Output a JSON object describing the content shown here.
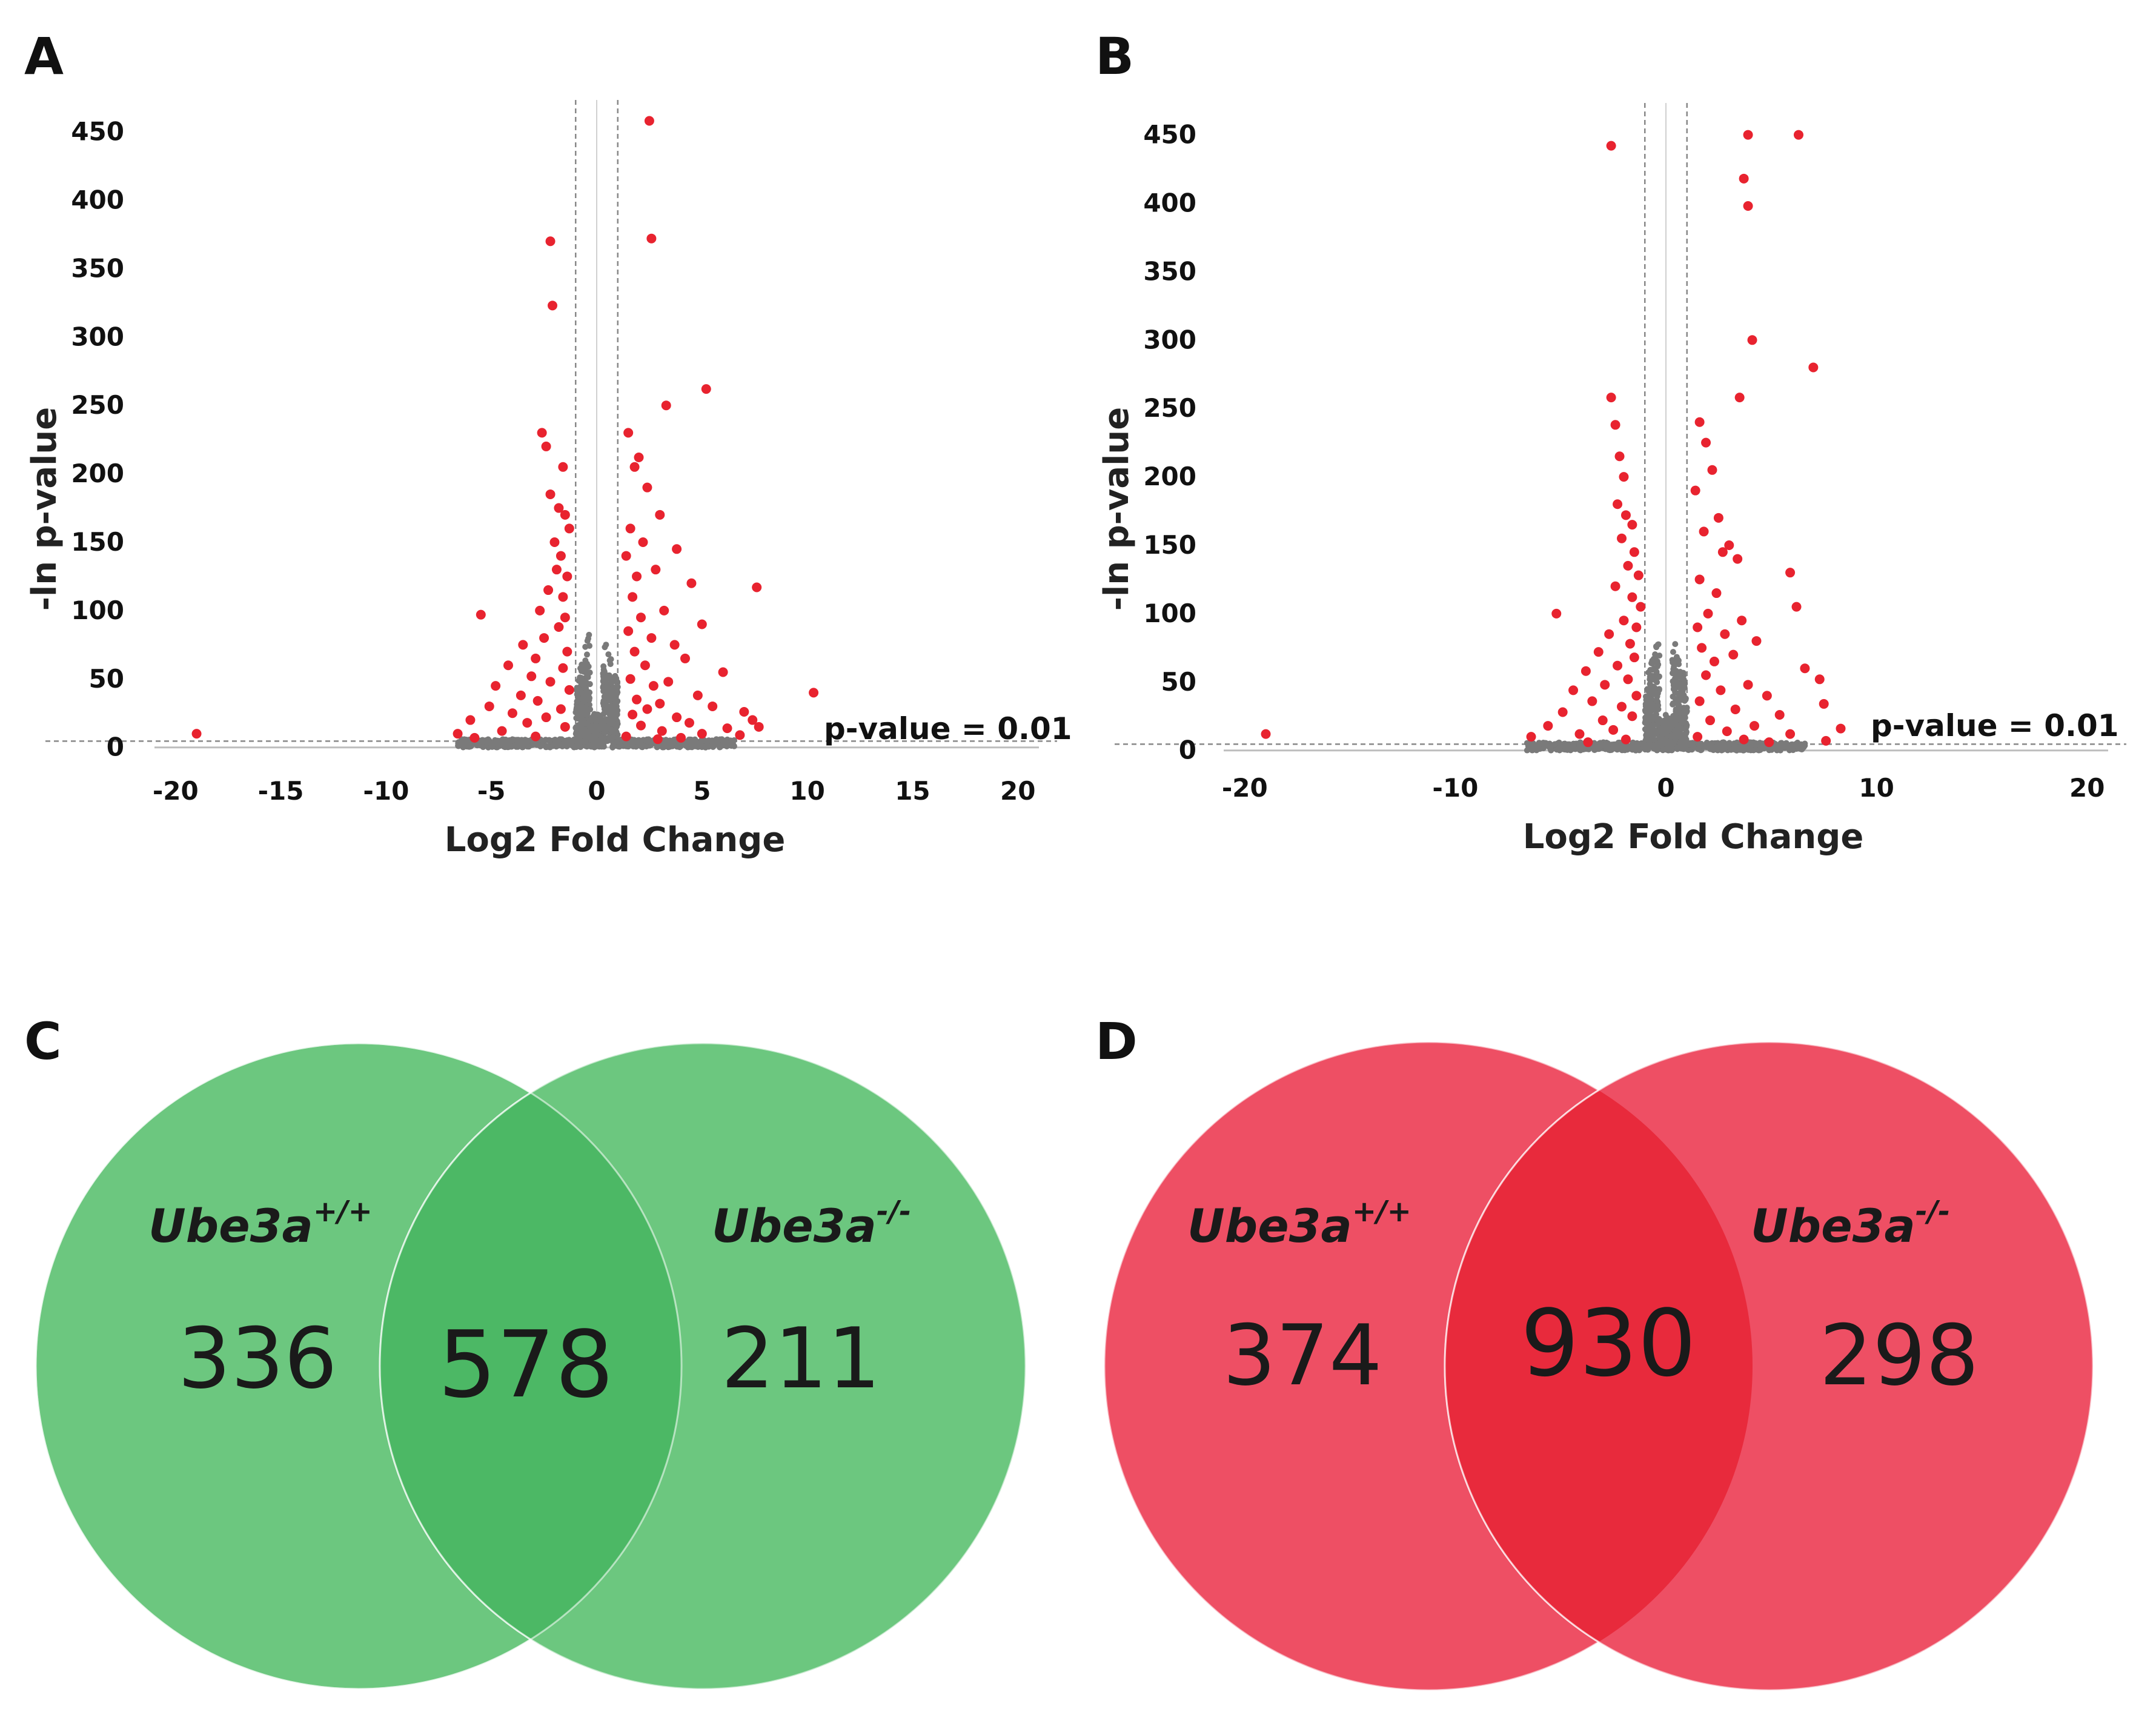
{
  "colors": {
    "significant": "#e8232f",
    "nonsignificant": "#7a7a7a",
    "venn_green": "#6cc77f",
    "venn_green_overlap": "#4cb865",
    "venn_red": "#ee4f64",
    "venn_red_overlap": "#e82a3c"
  },
  "chart_data": [
    {
      "panel": "A",
      "type": "scatter",
      "title": "",
      "xlabel": "Log2 Fold Change",
      "ylabel": "-ln p-value",
      "xlim": [
        -21,
        21
      ],
      "ylim": [
        -5,
        460
      ],
      "xticks": [
        "-20",
        "-15",
        "-10",
        "-5",
        "0",
        "5",
        "10",
        "15",
        "20"
      ],
      "xtick_values": [
        -20,
        -15,
        -10,
        -5,
        0,
        5,
        10,
        15,
        20
      ],
      "yticks": [
        "0",
        "50",
        "100",
        "150",
        "200",
        "250",
        "300",
        "350",
        "400",
        "450"
      ],
      "ytick_values": [
        0,
        50,
        100,
        150,
        200,
        250,
        300,
        350,
        400,
        450
      ],
      "grid": false,
      "fold_change_thresholds": [
        -1,
        1
      ],
      "threshold_annotation": "p-value = 0.01",
      "threshold_y": 4.6,
      "series": [
        {
          "name": "significant",
          "points": [
            [
              -19,
              10
            ],
            [
              -2.2,
              370
            ],
            [
              -2.1,
              323
            ],
            [
              -2.6,
              230
            ],
            [
              -2.4,
              220
            ],
            [
              -1.6,
              205
            ],
            [
              -2.2,
              185
            ],
            [
              -1.8,
              175
            ],
            [
              -1.5,
              170
            ],
            [
              -1.3,
              160
            ],
            [
              -2.0,
              150
            ],
            [
              -1.7,
              140
            ],
            [
              -1.9,
              130
            ],
            [
              -1.4,
              125
            ],
            [
              -2.3,
              115
            ],
            [
              -1.6,
              110
            ],
            [
              -2.7,
              100
            ],
            [
              -5.5,
              97
            ],
            [
              -1.5,
              95
            ],
            [
              -1.8,
              88
            ],
            [
              -2.5,
              80
            ],
            [
              -3.5,
              75
            ],
            [
              -1.4,
              70
            ],
            [
              -2.9,
              65
            ],
            [
              -4.2,
              60
            ],
            [
              -1.6,
              58
            ],
            [
              -3.1,
              52
            ],
            [
              -2.2,
              48
            ],
            [
              -4.8,
              45
            ],
            [
              -1.3,
              42
            ],
            [
              -3.6,
              38
            ],
            [
              -2.8,
              34
            ],
            [
              -5.1,
              30
            ],
            [
              -1.7,
              28
            ],
            [
              -4.0,
              25
            ],
            [
              -2.4,
              22
            ],
            [
              -6.0,
              20
            ],
            [
              -3.3,
              18
            ],
            [
              -1.5,
              15
            ],
            [
              -4.5,
              12
            ],
            [
              -6.6,
              10
            ],
            [
              -2.9,
              8
            ],
            [
              -5.8,
              7
            ],
            [
              2.5,
              458
            ],
            [
              2.6,
              372
            ],
            [
              5.2,
              262
            ],
            [
              3.3,
              250
            ],
            [
              1.5,
              230
            ],
            [
              2.0,
              212
            ],
            [
              1.8,
              205
            ],
            [
              2.4,
              190
            ],
            [
              3.0,
              170
            ],
            [
              1.6,
              160
            ],
            [
              2.2,
              150
            ],
            [
              3.8,
              145
            ],
            [
              1.4,
              140
            ],
            [
              2.8,
              130
            ],
            [
              1.9,
              125
            ],
            [
              4.5,
              120
            ],
            [
              7.6,
              117
            ],
            [
              1.7,
              110
            ],
            [
              3.2,
              100
            ],
            [
              2.1,
              95
            ],
            [
              5.0,
              90
            ],
            [
              1.5,
              85
            ],
            [
              2.6,
              80
            ],
            [
              3.7,
              75
            ],
            [
              1.8,
              70
            ],
            [
              4.2,
              65
            ],
            [
              2.3,
              60
            ],
            [
              6.0,
              55
            ],
            [
              1.6,
              50
            ],
            [
              3.4,
              48
            ],
            [
              2.7,
              45
            ],
            [
              10.3,
              40
            ],
            [
              4.8,
              38
            ],
            [
              1.9,
              35
            ],
            [
              3.0,
              32
            ],
            [
              5.5,
              30
            ],
            [
              2.4,
              28
            ],
            [
              7.0,
              26
            ],
            [
              1.7,
              24
            ],
            [
              3.8,
              22
            ],
            [
              7.4,
              20
            ],
            [
              4.4,
              18
            ],
            [
              2.1,
              16
            ],
            [
              6.2,
              14
            ],
            [
              3.1,
              12
            ],
            [
              5.0,
              10
            ],
            [
              1.4,
              8
            ],
            [
              4.0,
              7
            ],
            [
              7.7,
              15
            ],
            [
              6.8,
              9
            ],
            [
              2.9,
              6
            ]
          ]
        },
        {
          "name": "not significant",
          "points": []
        }
      ]
    },
    {
      "panel": "B",
      "type": "scatter",
      "title": "",
      "xlabel": "Log2 Fold Change",
      "ylabel": "-ln p-value",
      "xlim": [
        -21,
        21
      ],
      "ylim": [
        -5,
        460
      ],
      "xticks": [
        "-20",
        "-10",
        "0",
        "10",
        "20"
      ],
      "xtick_values": [
        -20,
        -10,
        0,
        10,
        20
      ],
      "yticks": [
        "0",
        "50",
        "100",
        "150",
        "200",
        "250",
        "300",
        "350",
        "400",
        "450"
      ],
      "ytick_values": [
        0,
        50,
        100,
        150,
        200,
        250,
        300,
        350,
        400,
        450
      ],
      "grid": false,
      "fold_change_thresholds": [
        -1,
        1
      ],
      "threshold_annotation": "p-value = 0.01",
      "threshold_y": 4.6,
      "series": [
        {
          "name": "significant",
          "points": [
            [
              -19,
              12
            ],
            [
              -2.6,
              442
            ],
            [
              -2.6,
              258
            ],
            [
              -2.4,
              238
            ],
            [
              -2.2,
              215
            ],
            [
              -2.0,
              200
            ],
            [
              -2.3,
              180
            ],
            [
              -1.9,
              172
            ],
            [
              -1.6,
              165
            ],
            [
              -2.1,
              155
            ],
            [
              -1.5,
              145
            ],
            [
              -1.8,
              135
            ],
            [
              -1.3,
              128
            ],
            [
              -2.4,
              120
            ],
            [
              -1.6,
              112
            ],
            [
              -1.2,
              105
            ],
            [
              -5.2,
              100
            ],
            [
              -2.0,
              95
            ],
            [
              -1.4,
              90
            ],
            [
              -2.7,
              85
            ],
            [
              -1.7,
              78
            ],
            [
              -3.2,
              72
            ],
            [
              -1.5,
              68
            ],
            [
              -2.3,
              62
            ],
            [
              -3.8,
              58
            ],
            [
              -1.8,
              52
            ],
            [
              -2.9,
              48
            ],
            [
              -4.4,
              44
            ],
            [
              -1.4,
              40
            ],
            [
              -3.5,
              36
            ],
            [
              -2.1,
              32
            ],
            [
              -4.9,
              28
            ],
            [
              -1.6,
              25
            ],
            [
              -3.0,
              22
            ],
            [
              -5.6,
              18
            ],
            [
              -2.5,
              15
            ],
            [
              -4.1,
              12
            ],
            [
              -6.4,
              10
            ],
            [
              -1.9,
              8
            ],
            [
              -3.7,
              6
            ],
            [
              3.9,
              450
            ],
            [
              6.3,
              450
            ],
            [
              3.7,
              418
            ],
            [
              3.9,
              398
            ],
            [
              4.1,
              300
            ],
            [
              7.0,
              280
            ],
            [
              3.5,
              258
            ],
            [
              1.6,
              240
            ],
            [
              1.9,
              225
            ],
            [
              2.2,
              205
            ],
            [
              1.4,
              190
            ],
            [
              2.5,
              170
            ],
            [
              1.8,
              160
            ],
            [
              3.0,
              150
            ],
            [
              2.7,
              145
            ],
            [
              3.4,
              140
            ],
            [
              5.9,
              130
            ],
            [
              1.6,
              125
            ],
            [
              2.4,
              115
            ],
            [
              6.2,
              105
            ],
            [
              2.0,
              100
            ],
            [
              3.6,
              95
            ],
            [
              1.5,
              90
            ],
            [
              2.8,
              85
            ],
            [
              4.3,
              80
            ],
            [
              1.7,
              75
            ],
            [
              3.2,
              70
            ],
            [
              2.3,
              65
            ],
            [
              6.6,
              60
            ],
            [
              1.9,
              55
            ],
            [
              7.3,
              52
            ],
            [
              3.9,
              48
            ],
            [
              2.6,
              44
            ],
            [
              4.8,
              40
            ],
            [
              1.6,
              36
            ],
            [
              7.5,
              34
            ],
            [
              3.3,
              30
            ],
            [
              5.4,
              26
            ],
            [
              2.1,
              22
            ],
            [
              4.2,
              18
            ],
            [
              8.3,
              16
            ],
            [
              2.9,
              14
            ],
            [
              5.9,
              12
            ],
            [
              1.5,
              10
            ],
            [
              3.7,
              8
            ],
            [
              7.6,
              7
            ],
            [
              4.9,
              6
            ]
          ]
        },
        {
          "name": "not significant",
          "points": []
        }
      ]
    },
    {
      "panel": "C",
      "type": "venn",
      "sets": [
        {
          "label": "Ube3a",
          "superscript": "+/+",
          "only_count": "336"
        },
        {
          "label": "Ube3a",
          "superscript": "-/-",
          "only_count": "211"
        }
      ],
      "intersection": "578"
    },
    {
      "panel": "D",
      "type": "venn",
      "sets": [
        {
          "label": "Ube3a",
          "superscript": "+/+",
          "only_count": "374"
        },
        {
          "label": "Ube3a",
          "superscript": "-/-",
          "only_count": "298"
        }
      ],
      "intersection": "930"
    }
  ]
}
